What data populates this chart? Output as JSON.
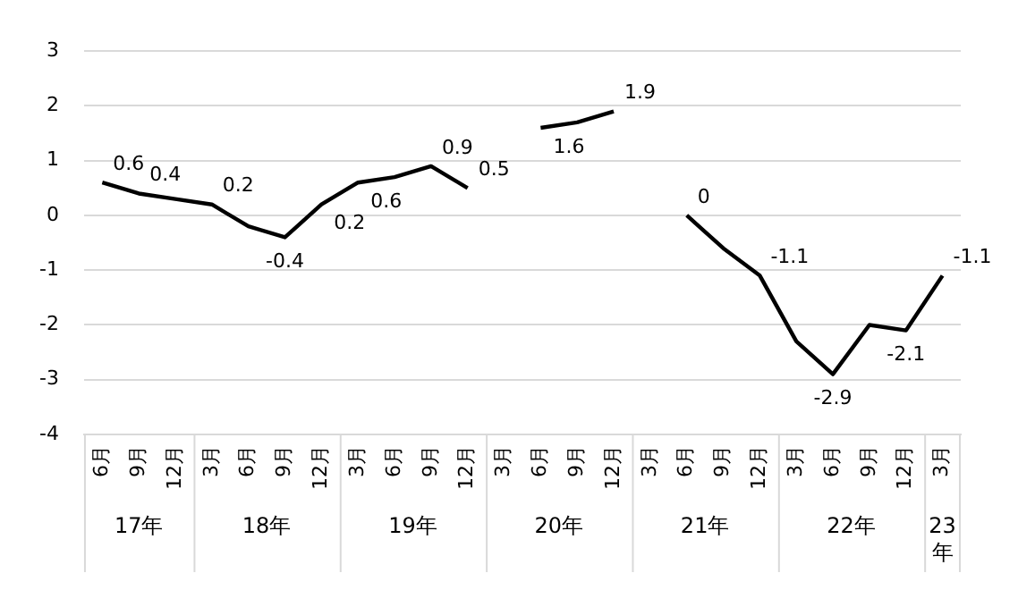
{
  "chart_data": {
    "type": "line",
    "categories": [
      "6月",
      "9月",
      "12月",
      "3月",
      "6月",
      "9月",
      "12月",
      "3月",
      "6月",
      "9月",
      "12月",
      "3月",
      "6月",
      "9月",
      "12月",
      "3月",
      "6月",
      "9月",
      "12月",
      "3月",
      "6月",
      "9月",
      "12月",
      "3月"
    ],
    "series": [
      {
        "color": "#000000",
        "values": [
          0.6,
          0.4,
          0.3,
          0.2,
          -0.2,
          -0.4,
          0.2,
          0.6,
          0.7,
          0.9,
          0.5,
          null,
          1.6,
          1.7,
          1.9,
          null,
          0,
          -0.6,
          -1.1,
          -2.3,
          -2.9,
          -2.0,
          -2.1,
          -1.1
        ],
        "value_labels": [
          "0.6",
          "0.4",
          null,
          "0.2",
          null,
          "-0.4",
          "0.2",
          "0.6",
          null,
          "0.9",
          "0.5",
          null,
          "1.6",
          null,
          "1.9",
          null,
          "0",
          null,
          "-1.1",
          null,
          "-2.9",
          null,
          "-2.1",
          "-1.1"
        ]
      }
    ],
    "annotations": [
      "17年",
      "18年",
      "19年",
      "20年",
      "21年",
      "22年",
      "23年"
    ],
    "ylim": [
      -4,
      3
    ],
    "yticks": [
      -4,
      -3,
      -2,
      -1,
      0,
      1,
      2,
      3
    ],
    "grid": "y",
    "legend": false,
    "marker": "none",
    "line_style": "solid"
  }
}
